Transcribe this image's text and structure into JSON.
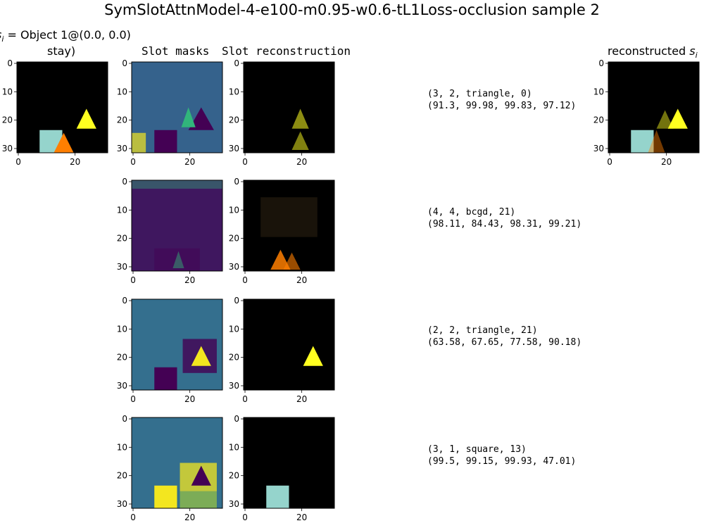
{
  "title": "SymSlotAttnModel-4-e100-m0.95-w0.6-tL1Loss-occlusion sample 2",
  "column_headers": {
    "input_line1": "Object 1@(0.0, 0.0)",
    "input_line2": "stay)",
    "masks": "Slot masks",
    "recon": "Slot reconstruction",
    "full": "reconstructed"
  },
  "colors": {
    "black": "#000000",
    "teal_square": "#95d4cc",
    "orange_triangle": "#ff7f00",
    "yellow_triangle": "#ffff20",
    "mask_dark": "#440154",
    "mask_mid": "#2f6e8e",
    "mask_green": "#31b57b",
    "mask_yellow": "#f3e61f"
  },
  "chart_data": {
    "type": "image_grid",
    "panel_axis": {
      "xticks": [
        "0",
        "20"
      ],
      "yticks": [
        "0",
        "10",
        "20",
        "30"
      ],
      "xlim": [
        -0.5,
        31.5
      ],
      "ylim": [
        31.5,
        -0.5
      ]
    },
    "slots": [
      {
        "tuple": "(3, 2, triangle, 0)",
        "scores": "(91.3, 99.98, 99.83, 97.12)"
      },
      {
        "tuple": "(4, 4, bcgd, 21)",
        "scores": "(98.11, 84.43, 98.31, 99.21)"
      },
      {
        "tuple": "(2, 2, triangle, 21)",
        "scores": "(63.58, 67.65, 77.58, 90.18)"
      },
      {
        "tuple": "(3, 1, square, 13)",
        "scores": "(99.5, 99.15, 99.93, 47.01)"
      }
    ]
  }
}
